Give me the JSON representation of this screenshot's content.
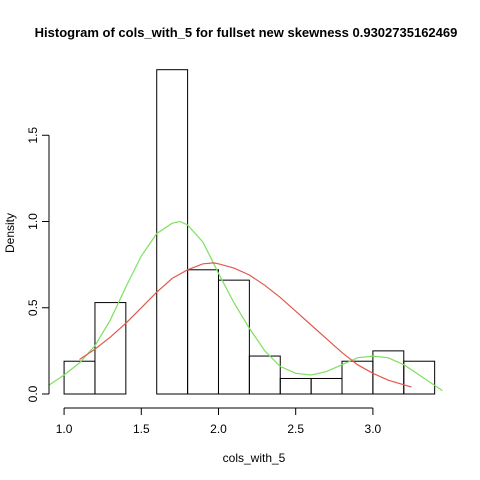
{
  "chart_data": {
    "type": "histogram",
    "title": "Histogram of cols_with_5 for fullset new skewness 0.9302735162469",
    "xlabel": "cols_with_5",
    "ylabel": "Density",
    "xlim": [
      0.993,
      3.467
    ],
    "ylim": [
      0,
      1.88
    ],
    "x_ticks": [
      {
        "value": 1.0,
        "label": "1.0"
      },
      {
        "value": 1.5,
        "label": "1.5"
      },
      {
        "value": 2.0,
        "label": "2.0"
      },
      {
        "value": 2.5,
        "label": "2.5"
      },
      {
        "value": 3.0,
        "label": "3.0"
      }
    ],
    "y_ticks": [
      {
        "value": 0.0,
        "label": "0.0"
      },
      {
        "value": 0.5,
        "label": "0.5"
      },
      {
        "value": 1.0,
        "label": "1.0"
      },
      {
        "value": 1.5,
        "label": "1.5"
      }
    ],
    "bins": [
      {
        "start": 1.0,
        "end": 1.2,
        "density": 0.19
      },
      {
        "start": 1.2,
        "end": 1.4,
        "density": 0.53
      },
      {
        "start": 1.4,
        "end": 1.6,
        "density": 0.0
      },
      {
        "start": 1.6,
        "end": 1.8,
        "density": 1.88
      },
      {
        "start": 1.8,
        "end": 2.0,
        "density": 0.72
      },
      {
        "start": 2.0,
        "end": 2.2,
        "density": 0.66
      },
      {
        "start": 2.2,
        "end": 2.4,
        "density": 0.22
      },
      {
        "start": 2.4,
        "end": 2.6,
        "density": 0.09
      },
      {
        "start": 2.6,
        "end": 2.8,
        "density": 0.09
      },
      {
        "start": 2.8,
        "end": 3.0,
        "density": 0.19
      },
      {
        "start": 3.0,
        "end": 3.2,
        "density": 0.25
      },
      {
        "start": 3.2,
        "end": 3.4,
        "density": 0.19
      }
    ],
    "series": [
      {
        "kind": "kde",
        "color": "#7ee05f",
        "x": [
          0.9,
          1.0,
          1.1,
          1.2,
          1.3,
          1.4,
          1.5,
          1.6,
          1.7,
          1.75,
          1.8,
          1.9,
          2.0,
          2.1,
          2.2,
          2.3,
          2.4,
          2.5,
          2.6,
          2.7,
          2.8,
          2.9,
          3.0,
          3.1,
          3.2,
          3.3,
          3.4,
          3.45
        ],
        "y": [
          0.05,
          0.11,
          0.18,
          0.28,
          0.43,
          0.62,
          0.8,
          0.93,
          0.99,
          1.0,
          0.98,
          0.88,
          0.7,
          0.53,
          0.38,
          0.25,
          0.16,
          0.12,
          0.11,
          0.13,
          0.17,
          0.21,
          0.22,
          0.21,
          0.17,
          0.11,
          0.05,
          0.02
        ]
      },
      {
        "kind": "normal",
        "color": "#e05a4e",
        "x": [
          1.1,
          1.2,
          1.3,
          1.4,
          1.5,
          1.6,
          1.7,
          1.8,
          1.9,
          1.97,
          2.0,
          2.1,
          2.2,
          2.3,
          2.4,
          2.5,
          2.6,
          2.7,
          2.8,
          2.9,
          3.0,
          3.1,
          3.25
        ],
        "y": [
          0.2,
          0.26,
          0.33,
          0.41,
          0.5,
          0.59,
          0.67,
          0.72,
          0.755,
          0.76,
          0.755,
          0.73,
          0.69,
          0.63,
          0.56,
          0.48,
          0.4,
          0.32,
          0.24,
          0.17,
          0.12,
          0.08,
          0.04
        ]
      }
    ]
  }
}
